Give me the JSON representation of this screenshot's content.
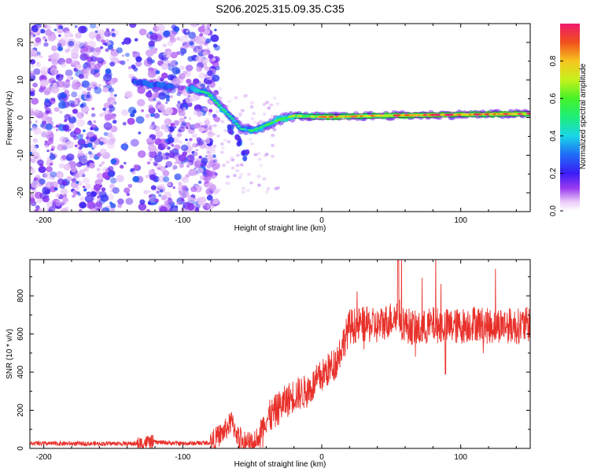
{
  "title": "S206.2025.315.09.35.C35",
  "chart_data": [
    {
      "type": "heatmap",
      "name": "spectrogram",
      "title": "S206.2025.315.09.35.C35",
      "xlabel": "Height of straight line (km)",
      "ylabel": "Frequency (Hz)",
      "xlim": [
        -210,
        150
      ],
      "ylim": [
        -25,
        25
      ],
      "xticks": [
        -200,
        -100,
        0,
        100
      ],
      "xtick_labels": [
        "-200",
        "-100",
        "0",
        "100"
      ],
      "yticks": [
        -20,
        -10,
        0,
        10,
        20
      ],
      "ytick_labels": [
        "-20",
        "-10",
        "0",
        "10",
        "20"
      ],
      "colorbar": {
        "label": "Normalized spectral amplitude",
        "range": [
          0,
          1
        ],
        "ticks": [
          0.0,
          0.2,
          0.4,
          0.6,
          0.8
        ],
        "tick_labels": [
          "0.0",
          "0.2",
          "0.4",
          "0.6",
          "0.8"
        ]
      },
      "ridge": [
        {
          "x": -135,
          "y": 9.5,
          "amp": 0.35
        },
        {
          "x": -125,
          "y": 9.0,
          "amp": 0.45
        },
        {
          "x": -115,
          "y": 8.5,
          "amp": 0.4
        },
        {
          "x": -92,
          "y": 7.5,
          "amp": 0.55
        },
        {
          "x": -82,
          "y": 6.5,
          "amp": 0.5
        },
        {
          "x": -72,
          "y": 2.5,
          "amp": 0.55
        },
        {
          "x": -65,
          "y": 0.0,
          "amp": 0.5
        },
        {
          "x": -58,
          "y": -3.0,
          "amp": 0.45
        },
        {
          "x": -50,
          "y": -3.5,
          "amp": 0.5
        },
        {
          "x": -40,
          "y": -2.0,
          "amp": 0.55
        },
        {
          "x": -30,
          "y": -0.5,
          "amp": 0.6
        },
        {
          "x": -20,
          "y": 0.5,
          "amp": 0.65
        },
        {
          "x": -10,
          "y": 0.3,
          "amp": 0.7
        },
        {
          "x": 0,
          "y": 0.2,
          "amp": 0.85
        },
        {
          "x": 20,
          "y": 0.3,
          "amp": 0.85
        },
        {
          "x": 40,
          "y": 0.5,
          "amp": 0.85
        },
        {
          "x": 60,
          "y": 0.6,
          "amp": 0.9
        },
        {
          "x": 80,
          "y": 0.7,
          "amp": 0.95
        },
        {
          "x": 100,
          "y": 0.8,
          "amp": 0.95
        },
        {
          "x": 120,
          "y": 0.9,
          "amp": 0.95
        },
        {
          "x": 150,
          "y": 1.0,
          "amp": 0.9
        }
      ],
      "branch": [
        {
          "x": -65,
          "y": -3.0
        },
        {
          "x": -60,
          "y": -6.0
        },
        {
          "x": -55,
          "y": -10.0
        }
      ]
    },
    {
      "type": "line",
      "name": "snr",
      "xlabel": "Height of straight line (km)",
      "ylabel": "SNR (10 * v/v)",
      "xlim": [
        -210,
        150
      ],
      "ylim": [
        0,
        990
      ],
      "xticks": [
        -200,
        -100,
        0,
        100
      ],
      "xtick_labels": [
        "-200",
        "-100",
        "0",
        "100"
      ],
      "yticks": [
        0,
        200,
        400,
        600,
        800
      ],
      "ytick_labels": [
        "0",
        "200",
        "400",
        "600",
        "800"
      ],
      "color": "#e8302a",
      "series_envelope": {
        "x": [
          -210,
          -130,
          -125,
          -100,
          -80,
          -70,
          -65,
          -60,
          -55,
          -50,
          -40,
          -35,
          -30,
          -20,
          -10,
          0,
          10,
          20,
          30,
          40,
          50,
          55,
          60,
          70,
          80,
          90,
          100,
          110,
          120,
          130,
          140,
          150
        ],
        "y": [
          25,
          25,
          35,
          25,
          30,
          90,
          140,
          60,
          40,
          20,
          150,
          180,
          220,
          280,
          300,
          380,
          450,
          640,
          650,
          640,
          680,
          700,
          650,
          620,
          650,
          640,
          640,
          660,
          640,
          650,
          640,
          650
        ]
      }
    }
  ]
}
